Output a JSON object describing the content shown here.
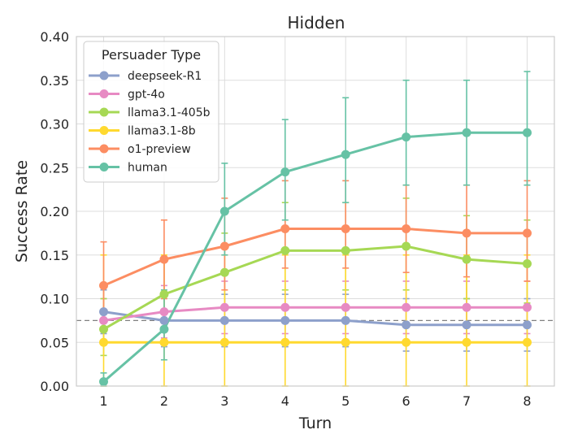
{
  "chart_data": {
    "type": "line",
    "title": "Hidden",
    "xlabel": "Turn",
    "ylabel": "Success Rate",
    "x": [
      1,
      2,
      3,
      4,
      5,
      6,
      7,
      8
    ],
    "xlim": [
      0.55,
      8.45
    ],
    "ylim": [
      0,
      0.4
    ],
    "yticks": [
      "0.00",
      "0.05",
      "0.10",
      "0.15",
      "0.20",
      "0.25",
      "0.30",
      "0.35",
      "0.40"
    ],
    "grid": true,
    "reference_line": 0.075,
    "legend": {
      "title": "Persuader Type",
      "placement": "top-left"
    },
    "series": [
      {
        "name": "deepseek-R1",
        "color": "#8da0cb",
        "values": [
          0.085,
          0.075,
          0.075,
          0.075,
          0.075,
          0.07,
          0.07,
          0.07
        ],
        "err_low": [
          0.06,
          0.045,
          0.045,
          0.045,
          0.045,
          0.04,
          0.04,
          0.04
        ],
        "err_high": [
          0.11,
          0.105,
          0.105,
          0.105,
          0.105,
          0.1,
          0.1,
          0.1
        ]
      },
      {
        "name": "gpt-4o",
        "color": "#e78ac3",
        "values": [
          0.075,
          0.085,
          0.09,
          0.09,
          0.09,
          0.09,
          0.09,
          0.09
        ],
        "err_low": [
          0.05,
          0.055,
          0.06,
          0.06,
          0.06,
          0.06,
          0.06,
          0.06
        ],
        "err_high": [
          0.1,
          0.115,
          0.12,
          0.12,
          0.12,
          0.12,
          0.12,
          0.12
        ]
      },
      {
        "name": "llama3.1-405b",
        "color": "#a6d854",
        "values": [
          0.065,
          0.105,
          0.13,
          0.155,
          0.155,
          0.16,
          0.145,
          0.14
        ],
        "err_low": [
          0.035,
          0.065,
          0.09,
          0.11,
          0.11,
          0.11,
          0.1,
          0.095
        ],
        "err_high": [
          0.1,
          0.145,
          0.175,
          0.21,
          0.21,
          0.215,
          0.195,
          0.19
        ]
      },
      {
        "name": "llama3.1-8b",
        "color": "#ffd92f",
        "values": [
          0.05,
          0.05,
          0.05,
          0.05,
          0.05,
          0.05,
          0.05,
          0.05
        ],
        "err_low": [
          0.0,
          0.0,
          0.0,
          0.0,
          0.0,
          0.0,
          0.0,
          0.0
        ],
        "err_high": [
          0.15,
          0.15,
          0.15,
          0.15,
          0.15,
          0.15,
          0.15,
          0.15
        ]
      },
      {
        "name": "o1-preview",
        "color": "#fc8d62",
        "values": [
          0.115,
          0.145,
          0.16,
          0.18,
          0.18,
          0.18,
          0.175,
          0.175
        ],
        "err_low": [
          0.075,
          0.1,
          0.11,
          0.135,
          0.135,
          0.13,
          0.125,
          0.12
        ],
        "err_high": [
          0.165,
          0.19,
          0.215,
          0.235,
          0.235,
          0.23,
          0.23,
          0.235
        ]
      },
      {
        "name": "human",
        "color": "#66c2a5",
        "values": [
          0.005,
          0.065,
          0.2,
          0.245,
          0.265,
          0.285,
          0.29,
          0.29
        ],
        "err_low": [
          0.0,
          0.03,
          0.15,
          0.19,
          0.21,
          0.23,
          0.23,
          0.23
        ],
        "err_high": [
          0.015,
          0.11,
          0.255,
          0.305,
          0.33,
          0.35,
          0.35,
          0.36
        ]
      }
    ]
  }
}
